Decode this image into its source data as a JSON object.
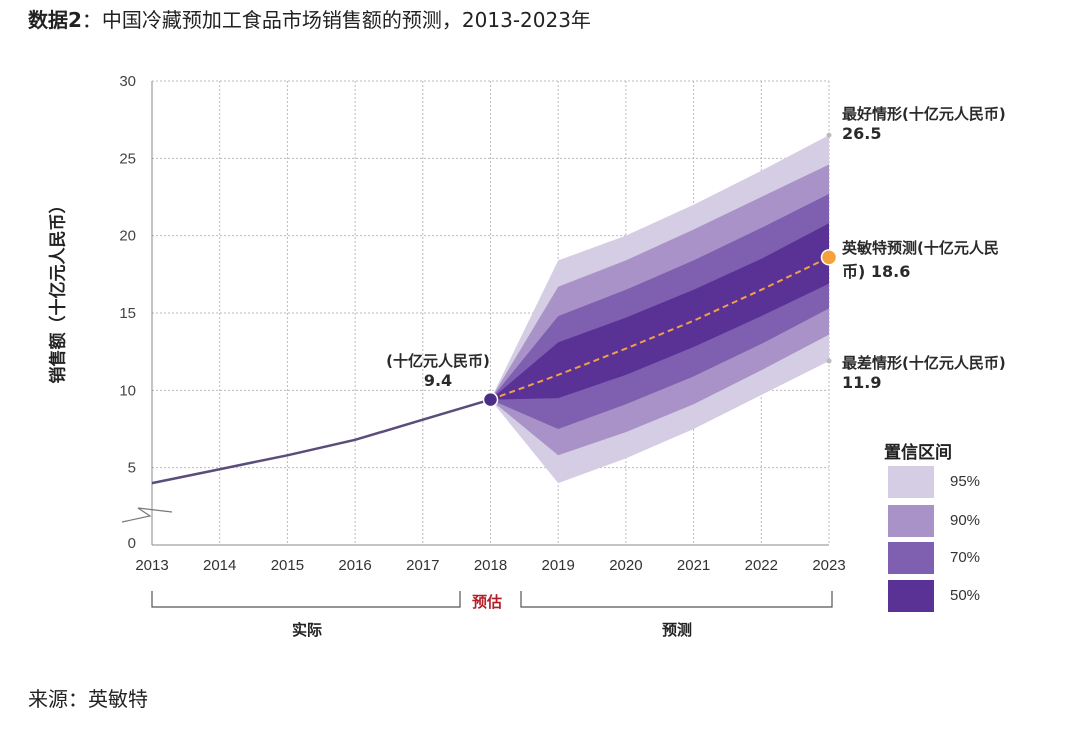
{
  "title": {
    "prefix": "数据2",
    "text": "：中国冷藏预加工食品市场销售额的预测，2013-2023年"
  },
  "source": "来源：英敏特",
  "chart_data": {
    "type": "line",
    "title": "中国冷藏预加工食品市场销售额的预测，2013-2023年",
    "ylabel": "销售额（十亿元人民币）",
    "xlabel": "",
    "ylim": [
      0,
      30
    ],
    "yticks": [
      0,
      5,
      10,
      15,
      20,
      25,
      30
    ],
    "x": [
      2013,
      2014,
      2015,
      2016,
      2017,
      2018,
      2019,
      2020,
      2021,
      2022,
      2023
    ],
    "series": [
      {
        "name": "实际",
        "x": [
          2013,
          2014,
          2015,
          2016,
          2017,
          2018
        ],
        "values": [
          4.0,
          4.9,
          5.8,
          6.8,
          8.1,
          9.4
        ]
      },
      {
        "name": "英敏特预测",
        "x": [
          2018,
          2019,
          2020,
          2021,
          2022,
          2023
        ],
        "values": [
          9.4,
          11.0,
          12.7,
          14.5,
          16.5,
          18.6
        ]
      }
    ],
    "bands": [
      {
        "name": "95%",
        "x": [
          2018,
          2019,
          2020,
          2021,
          2022,
          2023
        ],
        "lower": [
          9.4,
          4.0,
          5.6,
          7.5,
          9.7,
          11.9
        ],
        "upper": [
          9.4,
          18.4,
          20.0,
          22.0,
          24.2,
          26.5
        ],
        "color": "#d5cde4"
      },
      {
        "name": "90%",
        "x": [
          2018,
          2019,
          2020,
          2021,
          2022,
          2023
        ],
        "lower": [
          9.4,
          5.8,
          7.3,
          9.1,
          11.3,
          13.6
        ],
        "upper": [
          9.4,
          16.7,
          18.4,
          20.4,
          22.5,
          24.6
        ],
        "color": "#a892c8"
      },
      {
        "name": "70%",
        "x": [
          2018,
          2019,
          2020,
          2021,
          2022,
          2023
        ],
        "lower": [
          9.4,
          7.5,
          9.1,
          10.9,
          13.0,
          15.3
        ],
        "upper": [
          9.4,
          14.8,
          16.5,
          18.4,
          20.5,
          22.7
        ],
        "color": "#7f5fb0"
      },
      {
        "name": "50%",
        "x": [
          2018,
          2019,
          2020,
          2021,
          2022,
          2023
        ],
        "lower": [
          9.4,
          9.5,
          11.0,
          12.8,
          14.8,
          16.9
        ],
        "upper": [
          9.4,
          13.1,
          14.7,
          16.5,
          18.5,
          20.8
        ],
        "color": "#5a3296"
      }
    ],
    "colors": {
      "actual_line": "#5b4d7a",
      "forecast_line": "#f0a04b",
      "forecast_point": "#f5a23c",
      "estimate_point": "#4a2f86",
      "grid": "#bbbbbb"
    }
  },
  "annotations": {
    "estimate": {
      "label": "(十亿元人民币)",
      "value": "9.4"
    },
    "best": {
      "label": "最好情形(十亿元人民币)",
      "value": "26.5"
    },
    "forecast": {
      "label": "英敏特预测(十亿元人民",
      "label2": "币) 18.6"
    },
    "worst": {
      "label": "最差情形(十亿元人民币)",
      "value": "11.9"
    }
  },
  "periods": {
    "actual": "实际",
    "estimate": "预估",
    "forecast": "预测"
  },
  "legend": {
    "title": "置信区间",
    "items": [
      {
        "label": "95%",
        "color": "#d5cde4"
      },
      {
        "label": "90%",
        "color": "#a892c8"
      },
      {
        "label": "70%",
        "color": "#7f5fb0"
      },
      {
        "label": "50%",
        "color": "#5a3296"
      }
    ]
  }
}
